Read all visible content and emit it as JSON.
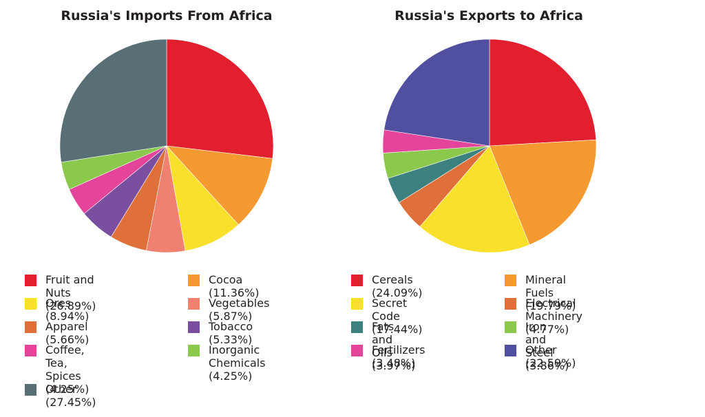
{
  "chart_data": [
    {
      "type": "pie",
      "title": "Russia's Imports From Africa",
      "slices": [
        {
          "label": "Fruit and Nuts (26.89%)",
          "value": 26.89,
          "color": "#e11f2f"
        },
        {
          "label": "Cocoa (11.36%)",
          "value": 11.36,
          "color": "#f59a31"
        },
        {
          "label": "Ores (8.94%)",
          "value": 8.94,
          "color": "#f9e02a"
        },
        {
          "label": "Vegetables (5.87%)",
          "value": 5.87,
          "color": "#f08070"
        },
        {
          "label": "Apparel (5.66%)",
          "value": 5.66,
          "color": "#e0703a"
        },
        {
          "label": "Tobacco (5.33%)",
          "value": 5.33,
          "color": "#7a4fa0"
        },
        {
          "label": "Coffee, Tea, Spices\n(4.25%)",
          "value": 4.25,
          "color": "#e4449a"
        },
        {
          "label": "Inorganic Chemicals\n(4.25%)",
          "value": 4.25,
          "color": "#8bc94c"
        },
        {
          "label": "Other (27.45%)",
          "value": 27.45,
          "color": "#587075"
        }
      ]
    },
    {
      "type": "pie",
      "title": "Russia's Exports to Africa",
      "slices": [
        {
          "label": "Cereals (24.09%)",
          "value": 24.09,
          "color": "#e11f2f"
        },
        {
          "label": "Mineral Fuels (19.79%)",
          "value": 19.79,
          "color": "#f59a31"
        },
        {
          "label": "Secret Code (17.44%)",
          "value": 17.44,
          "color": "#f9e02a"
        },
        {
          "label": "Electrical Machinery (4.77%)",
          "value": 4.77,
          "color": "#e0703a"
        },
        {
          "label": "Fats and Oils (3.97%)",
          "value": 3.97,
          "color": "#3c8080"
        },
        {
          "label": "Iron and Steel (3.86%)",
          "value": 3.86,
          "color": "#8bc94c"
        },
        {
          "label": "Fertilizers (3.48%)",
          "value": 3.48,
          "color": "#e4449a"
        },
        {
          "label": "Other (22.59%)",
          "value": 22.59,
          "color": "#5150a0"
        }
      ]
    }
  ]
}
